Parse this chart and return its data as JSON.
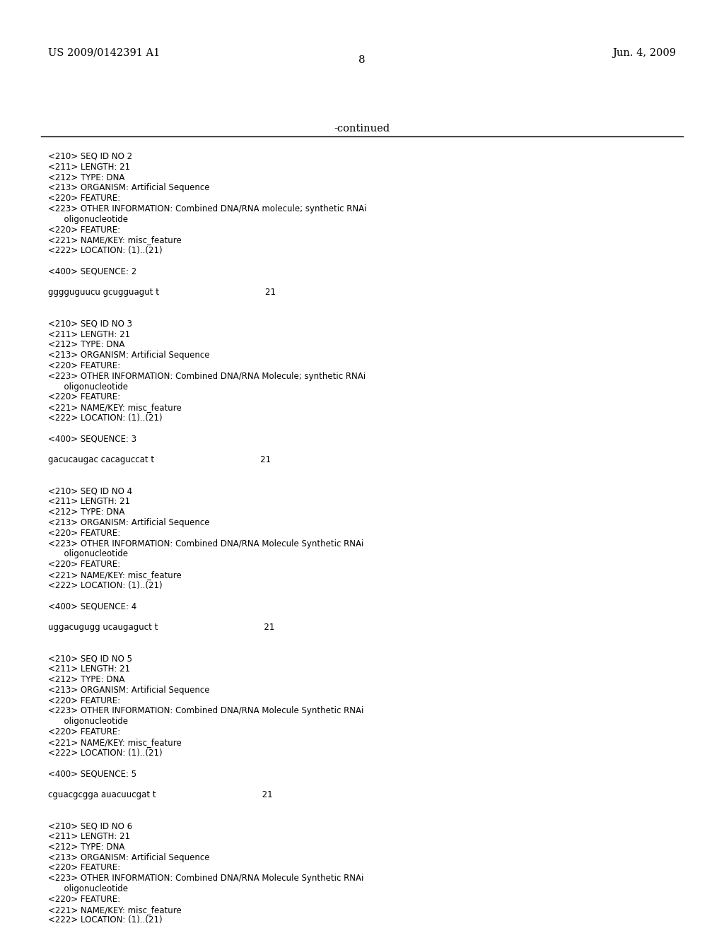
{
  "bg_color": "#ffffff",
  "header_left": "US 2009/0142391 A1",
  "header_right": "Jun. 4, 2009",
  "page_number": "8",
  "continued_label": "-continued",
  "mono_font": "Courier New",
  "serif_font": "DejaVu Serif",
  "body_lines": [
    {
      "text": "<210> SEQ ID NO 2",
      "type": "mono"
    },
    {
      "text": "<211> LENGTH: 21",
      "type": "mono"
    },
    {
      "text": "<212> TYPE: DNA",
      "type": "mono"
    },
    {
      "text": "<213> ORGANISM: Artificial Sequence",
      "type": "mono"
    },
    {
      "text": "<220> FEATURE:",
      "type": "mono"
    },
    {
      "text": "<223> OTHER INFORMATION: Combined DNA/RNA molecule; synthetic RNAi",
      "type": "mono"
    },
    {
      "text": "      oligonucleotide",
      "type": "mono"
    },
    {
      "text": "<220> FEATURE:",
      "type": "mono"
    },
    {
      "text": "<221> NAME/KEY: misc_feature",
      "type": "mono"
    },
    {
      "text": "<222> LOCATION: (1)..(21)",
      "type": "mono"
    },
    {
      "text": "",
      "type": "blank"
    },
    {
      "text": "<400> SEQUENCE: 2",
      "type": "mono"
    },
    {
      "text": "",
      "type": "blank"
    },
    {
      "text": "gggguguucu gcugguagut t                                        21",
      "type": "mono"
    },
    {
      "text": "",
      "type": "blank"
    },
    {
      "text": "",
      "type": "blank"
    },
    {
      "text": "<210> SEQ ID NO 3",
      "type": "mono"
    },
    {
      "text": "<211> LENGTH: 21",
      "type": "mono"
    },
    {
      "text": "<212> TYPE: DNA",
      "type": "mono"
    },
    {
      "text": "<213> ORGANISM: Artificial Sequence",
      "type": "mono"
    },
    {
      "text": "<220> FEATURE:",
      "type": "mono"
    },
    {
      "text": "<223> OTHER INFORMATION: Combined DNA/RNA Molecule; synthetic RNAi",
      "type": "mono"
    },
    {
      "text": "      oligonucleotide",
      "type": "mono"
    },
    {
      "text": "<220> FEATURE:",
      "type": "mono"
    },
    {
      "text": "<221> NAME/KEY: misc_feature",
      "type": "mono"
    },
    {
      "text": "<222> LOCATION: (1)..(21)",
      "type": "mono"
    },
    {
      "text": "",
      "type": "blank"
    },
    {
      "text": "<400> SEQUENCE: 3",
      "type": "mono"
    },
    {
      "text": "",
      "type": "blank"
    },
    {
      "text": "gacucaugac cacaguccat t                                        21",
      "type": "mono"
    },
    {
      "text": "",
      "type": "blank"
    },
    {
      "text": "",
      "type": "blank"
    },
    {
      "text": "<210> SEQ ID NO 4",
      "type": "mono"
    },
    {
      "text": "<211> LENGTH: 21",
      "type": "mono"
    },
    {
      "text": "<212> TYPE: DNA",
      "type": "mono"
    },
    {
      "text": "<213> ORGANISM: Artificial Sequence",
      "type": "mono"
    },
    {
      "text": "<220> FEATURE:",
      "type": "mono"
    },
    {
      "text": "<223> OTHER INFORMATION: Combined DNA/RNA Molecule Synthetic RNAi",
      "type": "mono"
    },
    {
      "text": "      oligonucleotide",
      "type": "mono"
    },
    {
      "text": "<220> FEATURE:",
      "type": "mono"
    },
    {
      "text": "<221> NAME/KEY: misc_feature",
      "type": "mono"
    },
    {
      "text": "<222> LOCATION: (1)..(21)",
      "type": "mono"
    },
    {
      "text": "",
      "type": "blank"
    },
    {
      "text": "<400> SEQUENCE: 4",
      "type": "mono"
    },
    {
      "text": "",
      "type": "blank"
    },
    {
      "text": "uggacugugg ucaugaguct t                                        21",
      "type": "mono"
    },
    {
      "text": "",
      "type": "blank"
    },
    {
      "text": "",
      "type": "blank"
    },
    {
      "text": "<210> SEQ ID NO 5",
      "type": "mono"
    },
    {
      "text": "<211> LENGTH: 21",
      "type": "mono"
    },
    {
      "text": "<212> TYPE: DNA",
      "type": "mono"
    },
    {
      "text": "<213> ORGANISM: Artificial Sequence",
      "type": "mono"
    },
    {
      "text": "<220> FEATURE:",
      "type": "mono"
    },
    {
      "text": "<223> OTHER INFORMATION: Combined DNA/RNA Molecule Synthetic RNAi",
      "type": "mono"
    },
    {
      "text": "      oligonucleotide",
      "type": "mono"
    },
    {
      "text": "<220> FEATURE:",
      "type": "mono"
    },
    {
      "text": "<221> NAME/KEY: misc_feature",
      "type": "mono"
    },
    {
      "text": "<222> LOCATION: (1)..(21)",
      "type": "mono"
    },
    {
      "text": "",
      "type": "blank"
    },
    {
      "text": "<400> SEQUENCE: 5",
      "type": "mono"
    },
    {
      "text": "",
      "type": "blank"
    },
    {
      "text": "cguacgcgga auacuucgat t                                        21",
      "type": "mono"
    },
    {
      "text": "",
      "type": "blank"
    },
    {
      "text": "",
      "type": "blank"
    },
    {
      "text": "<210> SEQ ID NO 6",
      "type": "mono"
    },
    {
      "text": "<211> LENGTH: 21",
      "type": "mono"
    },
    {
      "text": "<212> TYPE: DNA",
      "type": "mono"
    },
    {
      "text": "<213> ORGANISM: Artificial Sequence",
      "type": "mono"
    },
    {
      "text": "<220> FEATURE:",
      "type": "mono"
    },
    {
      "text": "<223> OTHER INFORMATION: Combined DNA/RNA Molecule Synthetic RNAi",
      "type": "mono"
    },
    {
      "text": "      oligonucleotide",
      "type": "mono"
    },
    {
      "text": "<220> FEATURE:",
      "type": "mono"
    },
    {
      "text": "<221> NAME/KEY: misc_feature",
      "type": "mono"
    },
    {
      "text": "<222> LOCATION: (1)..(21)",
      "type": "mono"
    }
  ]
}
